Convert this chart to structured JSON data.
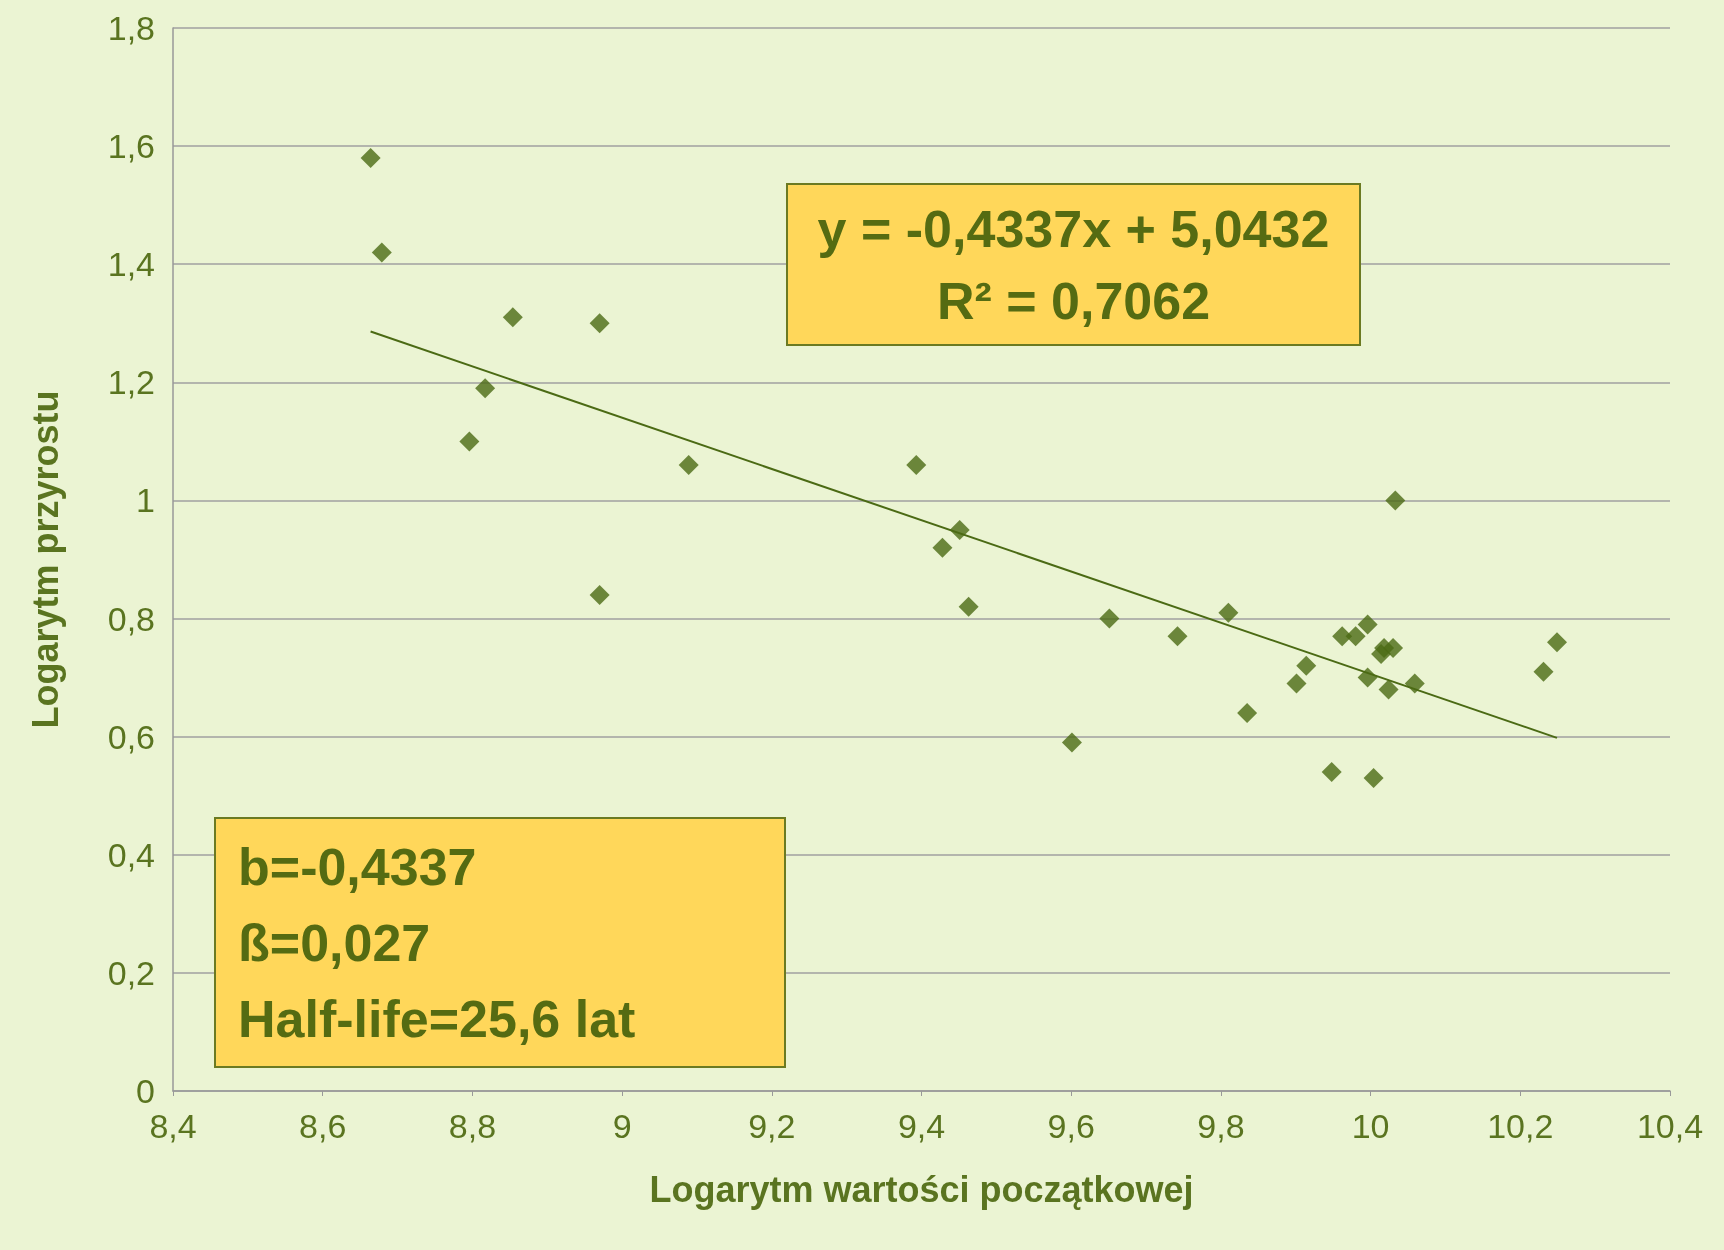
{
  "chart_data": {
    "type": "scatter",
    "xlabel": "Logarytm wartości początkowej",
    "ylabel": "Logarytm przyrostu",
    "x": [
      8.664,
      8.679,
      8.854,
      8.97,
      8.817,
      8.796,
      9.089,
      8.97,
      9.393,
      9.451,
      9.428,
      9.463,
      9.601,
      9.651,
      9.742,
      9.81,
      9.835,
      9.901,
      9.914,
      9.948,
      9.962,
      9.98,
      9.996,
      9.996,
      10.004,
      10.014,
      10.018,
      10.024,
      10.03,
      10.033,
      10.059,
      10.231,
      10.249
    ],
    "series": [
      {
        "color": "#4b6a14",
        "marker": "diamond",
        "values": [
          1.58,
          1.42,
          1.31,
          1.3,
          1.19,
          1.1,
          1.06,
          0.84,
          1.06,
          0.95,
          0.92,
          0.82,
          0.59,
          0.8,
          0.77,
          0.81,
          0.64,
          0.69,
          0.72,
          0.54,
          0.77,
          0.77,
          0.79,
          0.7,
          0.53,
          0.74,
          0.75,
          0.68,
          0.75,
          1.0,
          0.69,
          0.71,
          0.76
        ]
      },
      {
        "type": "line",
        "color": "#4b6a14",
        "marker": "none",
        "x": [
          8.664,
          10.249
        ],
        "values": [
          1.286,
          0.598
        ]
      }
    ],
    "xlim": [
      8.4,
      10.4
    ],
    "xticks": [
      {
        "value": 8.4,
        "label": "8,4"
      },
      {
        "value": 8.6,
        "label": "8,6"
      },
      {
        "value": 8.8,
        "label": "8,8"
      },
      9,
      {
        "value": 9.2,
        "label": "9,2"
      },
      {
        "value": 9.4,
        "label": "9,4"
      },
      {
        "value": 9.6,
        "label": "9,6"
      },
      {
        "value": 9.8,
        "label": "9,8"
      },
      10,
      {
        "value": 10.2,
        "label": "10,2"
      },
      {
        "value": 10.4,
        "label": "10,4"
      }
    ],
    "ylim": [
      0,
      1.8
    ],
    "yticks": [
      0,
      {
        "value": 0.2,
        "label": "0,2"
      },
      {
        "value": 0.4,
        "label": "0,4"
      },
      {
        "value": 0.6,
        "label": "0,6"
      },
      {
        "value": 0.8,
        "label": "0,8"
      },
      1,
      {
        "value": 1.2,
        "label": "1,2"
      },
      {
        "value": 1.4,
        "label": "1,4"
      },
      {
        "value": 1.6,
        "label": "1,6"
      },
      {
        "value": 1.8,
        "label": "1,8"
      }
    ],
    "grid": "y",
    "annotations": [
      "y = -0,4337x + 5,0432\nR² = 0,7062",
      "b=-0,4337\nß=0,027\nHalf-life=25,6 lat"
    ]
  }
}
